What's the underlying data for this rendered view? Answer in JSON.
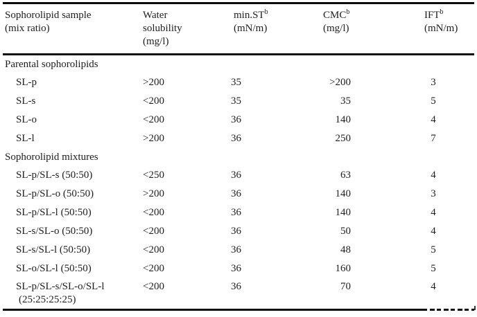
{
  "table": {
    "header": {
      "sample": {
        "line1": "Sophorolipid sample",
        "line2": "(mix ratio)"
      },
      "water": {
        "line1": "Water",
        "line2": "solubility",
        "line3": "(mg/l)"
      },
      "min_st": {
        "name": "min.ST",
        "sup": "b",
        "unit": "(mN/m)"
      },
      "cmc": {
        "name": "CMC",
        "sup": "b",
        "unit": "(mg/l)"
      },
      "ift": {
        "name": "IFT",
        "sup": "b",
        "unit": "(mN/m)"
      }
    },
    "sections": [
      {
        "header": "Parental sophorolipids",
        "rows": [
          {
            "sample": "SL-p",
            "water": ">200",
            "st": "35",
            "cmc": ">200",
            "ift": "3"
          },
          {
            "sample": "SL-s",
            "water": "<200",
            "st": "35",
            "cmc": "35",
            "ift": "5"
          },
          {
            "sample": "SL-o",
            "water": "<200",
            "st": "36",
            "cmc": "140",
            "ift": "4"
          },
          {
            "sample": "SL-l",
            "water": ">200",
            "st": "36",
            "cmc": "250",
            "ift": "7"
          }
        ]
      },
      {
        "header": "Sophorolipid mixtures",
        "rows": [
          {
            "sample": "SL-p/SL-s (50:50)",
            "water": "<250",
            "st": "36",
            "cmc": "63",
            "ift": "4"
          },
          {
            "sample": "SL-p/SL-o (50:50)",
            "water": ">200",
            "st": "36",
            "cmc": "140",
            "ift": "3"
          },
          {
            "sample": "SL-p/SL-l (50:50)",
            "water": "<200",
            "st": "36",
            "cmc": "140",
            "ift": "4"
          },
          {
            "sample": "SL-s/SL-o (50:50)",
            "water": "<200",
            "st": "36",
            "cmc": "50",
            "ift": "4"
          },
          {
            "sample": "SL-s/SL-l (50:50)",
            "water": "<200",
            "st": "36",
            "cmc": "48",
            "ift": "5"
          },
          {
            "sample": "SL-o/SL-l (50:50)",
            "water": "<200",
            "st": "36",
            "cmc": "160",
            "ift": "5"
          },
          {
            "sample": "SL-p/SL-s/SL-o/SL-l",
            "sample_line2": "(25:25:25:25)",
            "water": "<200",
            "st": "36",
            "cmc": "70",
            "ift": "4"
          }
        ]
      }
    ],
    "colors": {
      "text": "#1e1e1e",
      "rule": "#0b0b0b",
      "background": "#ffffff"
    }
  }
}
